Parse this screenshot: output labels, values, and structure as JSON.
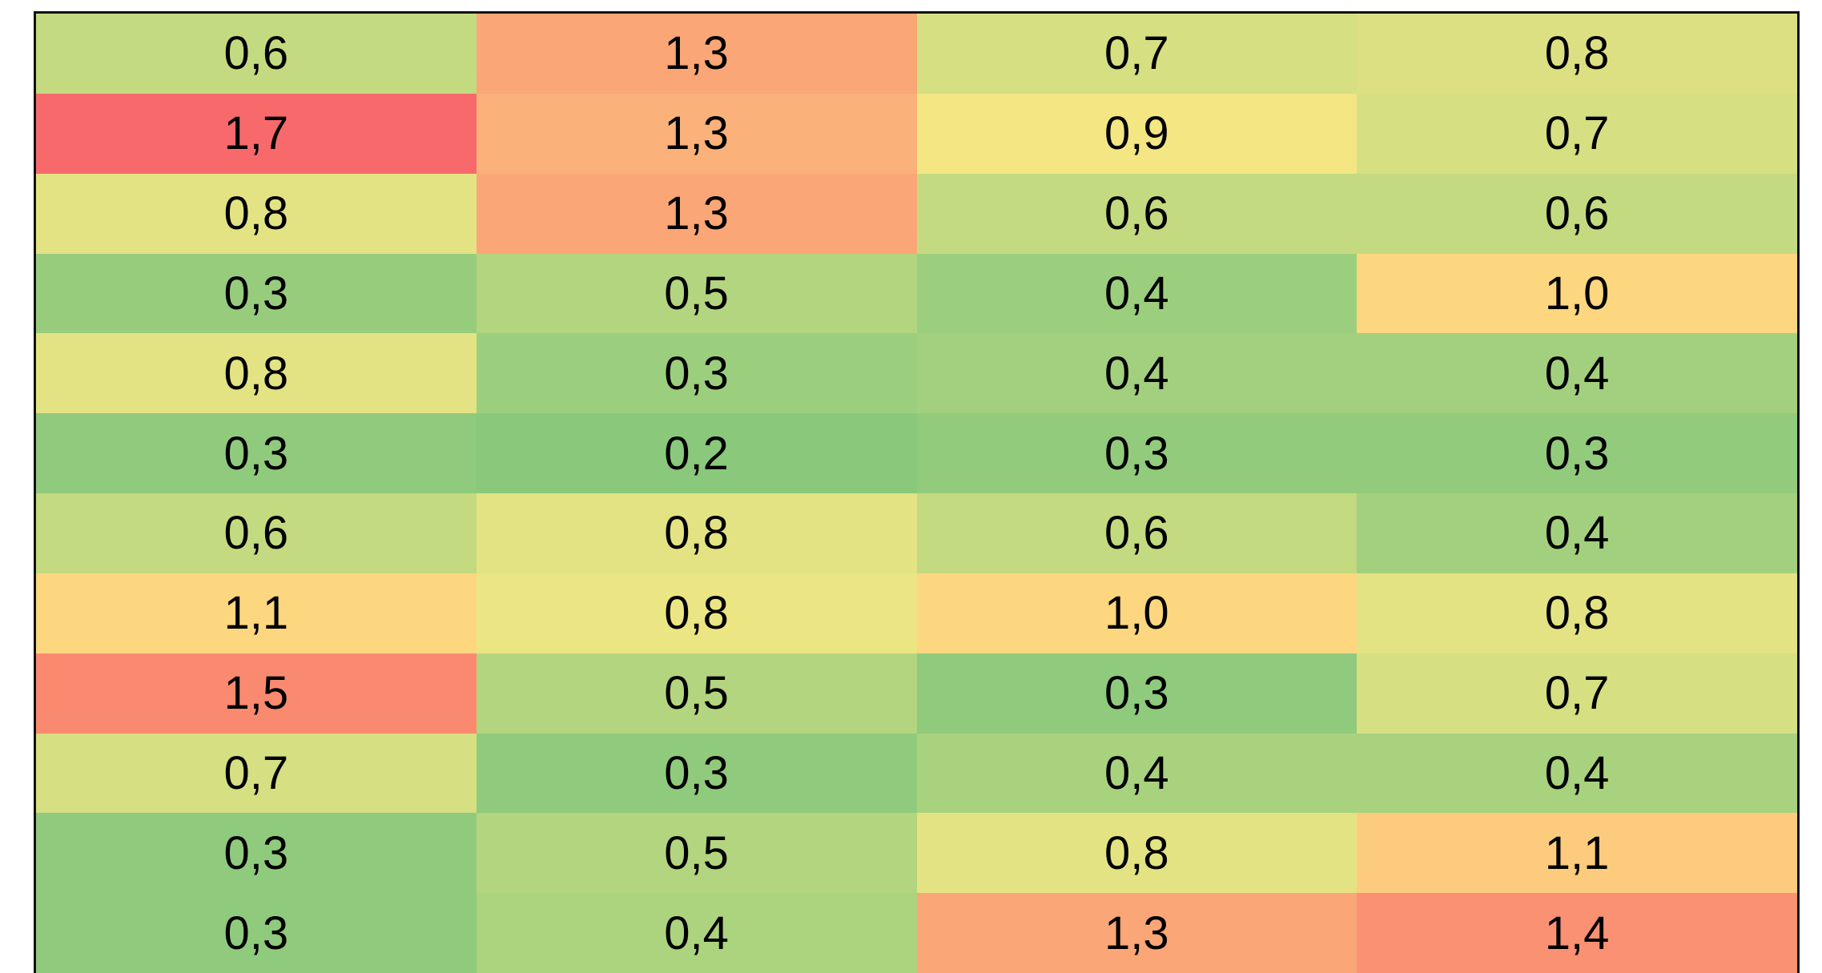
{
  "table": {
    "rows": [
      [
        "0,6",
        "1,3",
        "0,7",
        "0,8"
      ],
      [
        "1,7",
        "1,3",
        "0,9",
        "0,7"
      ],
      [
        "0,8",
        "1,3",
        "0,6",
        "0,6"
      ],
      [
        "0,3",
        "0,5",
        "0,4",
        "1,0"
      ],
      [
        "0,8",
        "0,3",
        "0,4",
        "0,4"
      ],
      [
        "0,3",
        "0,2",
        "0,3",
        "0,3"
      ],
      [
        "0,6",
        "0,8",
        "0,6",
        "0,4"
      ],
      [
        "1,1",
        "0,8",
        "1,0",
        "0,8"
      ],
      [
        "1,5",
        "0,5",
        "0,3",
        "0,7"
      ],
      [
        "0,7",
        "0,3",
        "0,4",
        "0,4"
      ],
      [
        "0,3",
        "0,5",
        "0,8",
        "1,1"
      ],
      [
        "0,3",
        "0,4",
        "1,3",
        "1,4"
      ]
    ],
    "colors": [
      [
        "#c4da80",
        "#fba676",
        "#d6df81",
        "#dde082"
      ],
      [
        "#f8696b",
        "#fab27a",
        "#f3e683",
        "#d6df81"
      ],
      [
        "#e3e383",
        "#fba676",
        "#c4da80",
        "#c4da80"
      ],
      [
        "#97cc7d",
        "#b3d57f",
        "#9ccf7d",
        "#fdd680"
      ],
      [
        "#e3e383",
        "#9ccf7d",
        "#a3d07e",
        "#a3d07e"
      ],
      [
        "#90ca7c",
        "#8ac87c",
        "#93cb7c",
        "#93cb7c"
      ],
      [
        "#c4da80",
        "#e3e383",
        "#c4da80",
        "#a3d07e"
      ],
      [
        "#fdd680",
        "#ece583",
        "#fdd680",
        "#e3e383"
      ],
      [
        "#f98a70",
        "#b3d57f",
        "#90ca7c",
        "#d6df81"
      ],
      [
        "#d6df81",
        "#90ca7c",
        "#a8d27e",
        "#a8d27e"
      ],
      [
        "#90ca7c",
        "#b3d57f",
        "#e3e383",
        "#fdcb7d"
      ],
      [
        "#90ca7c",
        "#acd37e",
        "#fba676",
        "#f99172"
      ]
    ]
  }
}
